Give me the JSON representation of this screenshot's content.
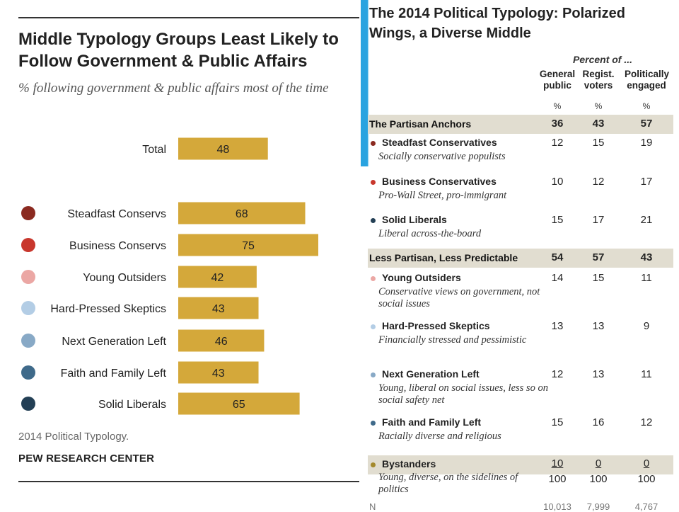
{
  "left_chart": {
    "title": "Middle Typology Groups Least Likely to Follow Government  & Public Affairs",
    "subtitle": "% following government & public affairs most of the time",
    "source": "2014 Political Typology.",
    "org": "PEW RESEARCH CENTER",
    "bar_color": "#d4a83a"
  },
  "chart_data": {
    "type": "bar",
    "orientation": "horizontal",
    "title": "Middle Typology Groups Least Likely to Follow Government  & Public Affairs",
    "subtitle": "% following government & public affairs most of the time",
    "categories": [
      "Total",
      "Steadfast Conservs",
      "Business Conservs",
      "Young Outsiders",
      "Hard-Pressed Skeptics",
      "Next Generation Left",
      "Faith and Family Left",
      "Solid Liberals"
    ],
    "values": [
      48,
      68,
      75,
      42,
      43,
      46,
      43,
      65
    ],
    "dot_colors": [
      null,
      "#8b2a20",
      "#c8372d",
      "#eba7a4",
      "#b3cde5",
      "#88a9c6",
      "#3f6a8a",
      "#233f55"
    ],
    "xlim": [
      0,
      100
    ],
    "grid": false,
    "data_labels": true
  },
  "table": {
    "title": "The 2014 Political Typology: Polarized Wings, a Diverse Middle",
    "percent_of": "Percent of ...",
    "columns": [
      {
        "label": "General public",
        "unit": "%"
      },
      {
        "label": "Regist. voters",
        "unit": "%"
      },
      {
        "label": "Politically engaged",
        "unit": "%"
      }
    ],
    "rows": [
      {
        "kind": "section",
        "label": "The Partisan Anchors",
        "values": [
          "36",
          "43",
          "57"
        ]
      },
      {
        "kind": "group",
        "name": "Steadfast Conservatives",
        "desc": "Socially conservative populists",
        "color": "#8b2a20",
        "values": [
          "12",
          "15",
          "19"
        ]
      },
      {
        "kind": "group",
        "name": "Business Conservatives",
        "desc": "Pro-Wall Street, pro-immigrant",
        "color": "#c8372d",
        "values": [
          "10",
          "12",
          "17"
        ]
      },
      {
        "kind": "group",
        "name": "Solid Liberals",
        "desc": "Liberal across-the-board",
        "color": "#233f55",
        "values": [
          "15",
          "17",
          "21"
        ]
      },
      {
        "kind": "section",
        "label": "Less Partisan, Less Predictable",
        "values": [
          "54",
          "57",
          "43"
        ]
      },
      {
        "kind": "group",
        "name": "Young Outsiders",
        "desc": "Conservative views on government, not social issues",
        "color": "#eba7a4",
        "values": [
          "14",
          "15",
          "11"
        ]
      },
      {
        "kind": "group",
        "name": "Hard-Pressed Skeptics",
        "desc": "Financially stressed and pessimistic",
        "color": "#b3cde5",
        "values": [
          "13",
          "13",
          "9"
        ]
      },
      {
        "kind": "group",
        "name": "Next Generation Left",
        "desc": "Young, liberal on social issues, less so on social safety net",
        "color": "#88a9c6",
        "values": [
          "12",
          "13",
          "11"
        ]
      },
      {
        "kind": "group",
        "name": "Faith and Family Left",
        "desc": "Racially diverse and religious",
        "color": "#3f6a8a",
        "values": [
          "15",
          "16",
          "12"
        ]
      },
      {
        "kind": "section",
        "label": "Bystanders",
        "desc": "Young, diverse, on the sidelines of politics",
        "color": "#a3892c",
        "values": [
          "10",
          "0",
          "0"
        ],
        "totals": [
          "100",
          "100",
          "100"
        ]
      }
    ],
    "n_label": "N",
    "n_values": [
      "10,013",
      "7,999",
      "4,767"
    ]
  },
  "colors": {
    "accent": "#29a3e0",
    "section_shade": "#e1ddd0",
    "bar": "#d4a83a"
  }
}
